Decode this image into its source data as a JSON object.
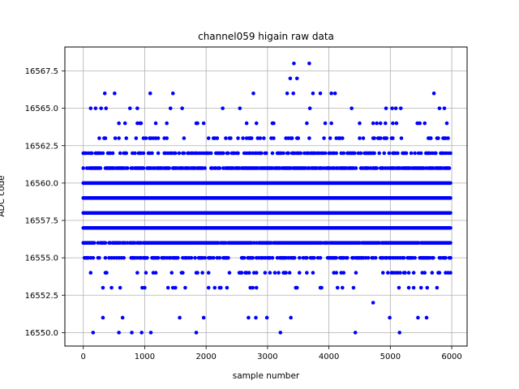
{
  "chart_data": {
    "type": "scatter",
    "title": "channel059 higain raw data",
    "xlabel": "sample number",
    "ylabel": "ADC code",
    "xlim": [
      -300,
      6250
    ],
    "ylim": [
      16549.1,
      16569.1
    ],
    "x_ticks": [
      0,
      1000,
      2000,
      3000,
      4000,
      5000,
      6000
    ],
    "x_tick_labels": [
      "0",
      "1000",
      "2000",
      "3000",
      "4000",
      "5000",
      "6000"
    ],
    "y_ticks": [
      16550.0,
      16552.5,
      16555.0,
      16557.5,
      16560.0,
      16562.5,
      16565.0,
      16567.5
    ],
    "y_tick_labels": [
      "16550.0",
      "16552.5",
      "16555.0",
      "16557.5",
      "16560.0",
      "16562.5",
      "16565.0",
      "16567.5"
    ],
    "grid": true,
    "marker_color": "#0000ff",
    "sample_count": 6000,
    "levels": [
      {
        "y": 16552,
        "density": 0.012
      },
      {
        "y": 16553,
        "density": 0.09
      },
      {
        "y": 16554,
        "density": 0.22
      },
      {
        "y": 16555,
        "density": 0.55
      },
      {
        "y": 16556,
        "density": 0.92
      },
      {
        "y": 16557,
        "density": 1.0
      },
      {
        "y": 16558,
        "density": 1.0
      },
      {
        "y": 16559,
        "density": 1.0
      },
      {
        "y": 16560,
        "density": 1.0
      },
      {
        "y": 16561,
        "density": 0.8
      },
      {
        "y": 16562,
        "density": 0.55
      },
      {
        "y": 16563,
        "density": 0.2
      },
      {
        "y": 16564,
        "density": 0.08
      }
    ],
    "sparse_points": [
      {
        "x": 160,
        "y": 16550
      },
      {
        "x": 580,
        "y": 16550
      },
      {
        "x": 790,
        "y": 16550
      },
      {
        "x": 950,
        "y": 16550
      },
      {
        "x": 1100,
        "y": 16550
      },
      {
        "x": 1840,
        "y": 16550
      },
      {
        "x": 3210,
        "y": 16550
      },
      {
        "x": 4430,
        "y": 16550
      },
      {
        "x": 5150,
        "y": 16550
      },
      {
        "x": 320,
        "y": 16551
      },
      {
        "x": 640,
        "y": 16551
      },
      {
        "x": 1570,
        "y": 16551
      },
      {
        "x": 1960,
        "y": 16551
      },
      {
        "x": 2690,
        "y": 16551
      },
      {
        "x": 2810,
        "y": 16551
      },
      {
        "x": 2990,
        "y": 16551
      },
      {
        "x": 3380,
        "y": 16551
      },
      {
        "x": 4990,
        "y": 16551
      },
      {
        "x": 5450,
        "y": 16551
      },
      {
        "x": 5590,
        "y": 16551
      },
      {
        "x": 120,
        "y": 16565
      },
      {
        "x": 200,
        "y": 16565
      },
      {
        "x": 290,
        "y": 16565
      },
      {
        "x": 370,
        "y": 16565
      },
      {
        "x": 760,
        "y": 16565
      },
      {
        "x": 880,
        "y": 16565
      },
      {
        "x": 1420,
        "y": 16565
      },
      {
        "x": 1610,
        "y": 16565
      },
      {
        "x": 2270,
        "y": 16565
      },
      {
        "x": 2550,
        "y": 16565
      },
      {
        "x": 3690,
        "y": 16565
      },
      {
        "x": 4370,
        "y": 16565
      },
      {
        "x": 4930,
        "y": 16565
      },
      {
        "x": 5030,
        "y": 16565
      },
      {
        "x": 5090,
        "y": 16565
      },
      {
        "x": 5170,
        "y": 16565
      },
      {
        "x": 5800,
        "y": 16565
      },
      {
        "x": 5880,
        "y": 16565
      },
      {
        "x": 350,
        "y": 16566
      },
      {
        "x": 510,
        "y": 16566
      },
      {
        "x": 1090,
        "y": 16566
      },
      {
        "x": 1460,
        "y": 16566
      },
      {
        "x": 2770,
        "y": 16566
      },
      {
        "x": 3320,
        "y": 16566
      },
      {
        "x": 3420,
        "y": 16566
      },
      {
        "x": 3740,
        "y": 16566
      },
      {
        "x": 3860,
        "y": 16566
      },
      {
        "x": 4040,
        "y": 16566
      },
      {
        "x": 4100,
        "y": 16566
      },
      {
        "x": 5710,
        "y": 16566
      },
      {
        "x": 3370,
        "y": 16567
      },
      {
        "x": 3480,
        "y": 16567
      },
      {
        "x": 3430,
        "y": 16568
      },
      {
        "x": 3680,
        "y": 16568
      }
    ]
  }
}
